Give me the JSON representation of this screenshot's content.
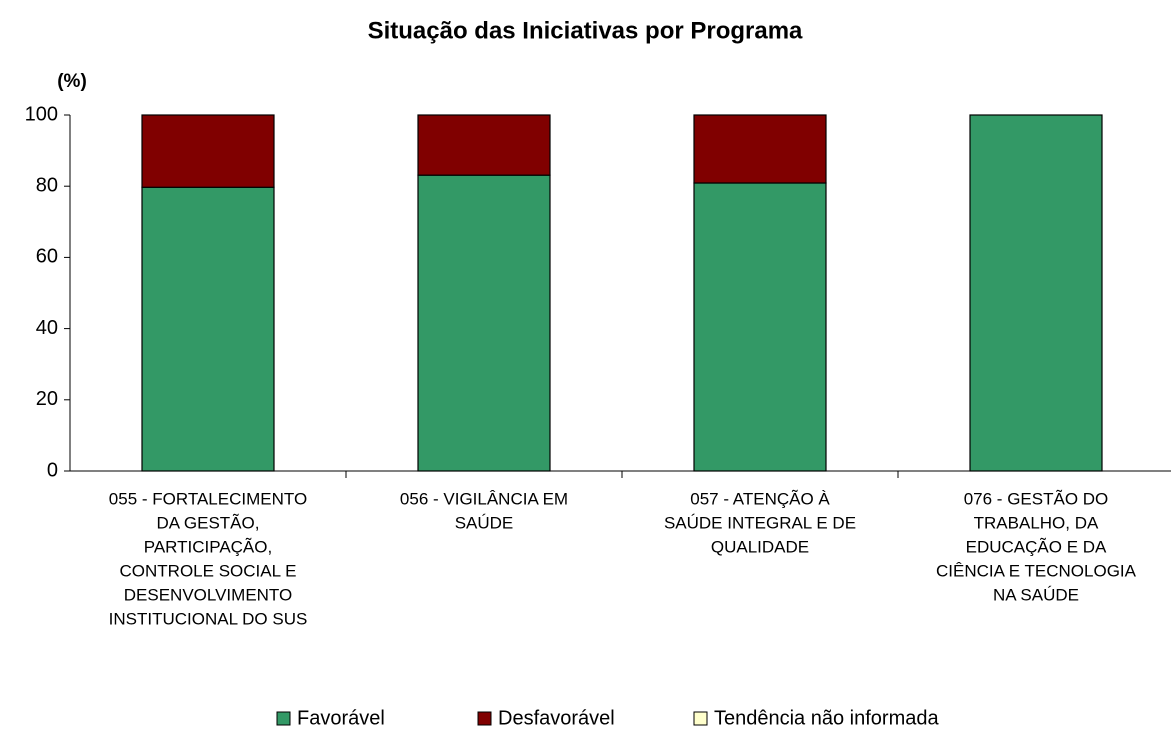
{
  "chart_data": {
    "type": "stacked_bar",
    "title": "Situação das Iniciativas por Programa",
    "y_label": "(%)",
    "categories": [
      [
        "055 - FORTALECIMENTO",
        "DA GESTÃO,",
        "PARTICIPAÇÃO,",
        "CONTROLE SOCIAL E",
        "DESENVOLVIMENTO",
        "INSTITUCIONAL DO SUS"
      ],
      [
        "056 - VIGILÂNCIA EM",
        "SAÚDE"
      ],
      [
        "057 - ATENÇÃO À",
        "SAÚDE INTEGRAL E DE",
        "QUALIDADE"
      ],
      [
        "076 - GESTÃO DO",
        "TRABALHO, DA",
        "EDUCAÇÃO E DA",
        "CIÊNCIA E TECNOLOGIA",
        "NA SAÚDE"
      ]
    ],
    "series": [
      {
        "name": "Favorável",
        "color": "#339966",
        "values": [
          79.7,
          83.1,
          80.9,
          100
        ]
      },
      {
        "name": "Desfavorável",
        "color": "#800000",
        "values": [
          20.3,
          16.9,
          19.1,
          0
        ]
      },
      {
        "name": "Tendência não informada",
        "color": "#ffffcc",
        "values": [
          0,
          0,
          0,
          0
        ]
      }
    ],
    "ylim": [
      0,
      100
    ],
    "yticks": [
      0,
      20,
      40,
      60,
      80,
      100
    ],
    "legend": "bottom"
  }
}
